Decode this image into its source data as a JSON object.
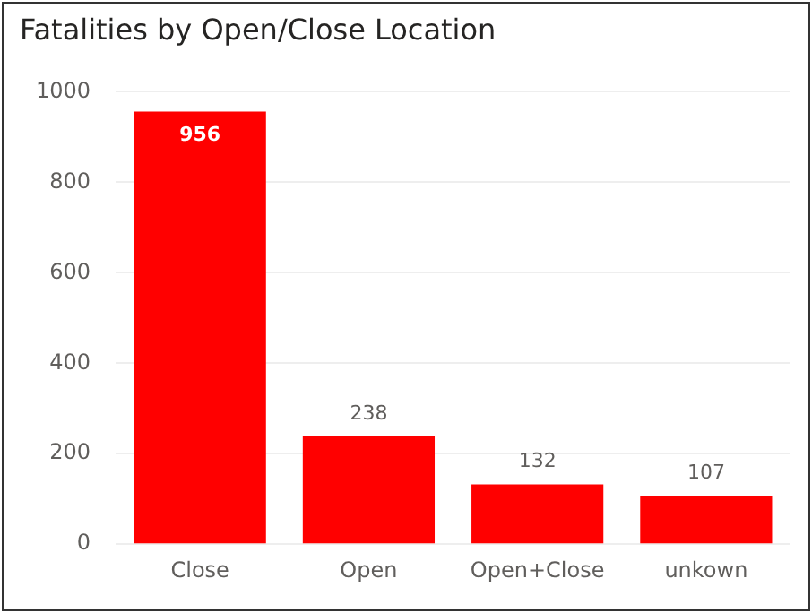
{
  "chart_data": {
    "type": "bar",
    "title": "Fatalities by Open/Close Location",
    "categories": [
      "Close",
      "Open",
      "Open+Close",
      "unkown"
    ],
    "values": [
      956,
      238,
      132,
      107
    ],
    "color": "#ff0000",
    "ylim": [
      0,
      1000
    ],
    "yticks": [
      0,
      200,
      400,
      600,
      800,
      1000
    ],
    "grid": "y",
    "data_labels": true
  }
}
